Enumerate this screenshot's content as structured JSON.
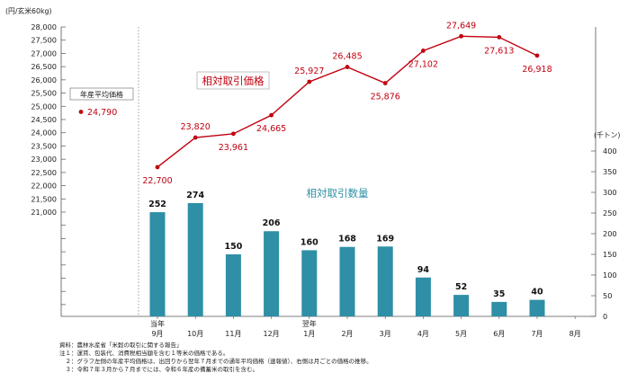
{
  "chart_data": {
    "type": "bar+line",
    "left_axis_unit": "(円/玄米60kg)",
    "right_axis_unit": "(千トン)",
    "left_ticks": [
      21000,
      21500,
      22000,
      22500,
      23000,
      23500,
      24000,
      24500,
      25000,
      25500,
      26000,
      26500,
      27000,
      27500,
      28000
    ],
    "left_tick_labels": [
      "21,000",
      "21,500",
      "22,000",
      "22,500",
      "23,000",
      "23,500",
      "24,000",
      "24,500",
      "25,000",
      "25,500",
      "26,000",
      "26,500",
      "27,000",
      "27,500",
      "28,000"
    ],
    "right_ticks": [
      0,
      50,
      100,
      150,
      200,
      250,
      300,
      350,
      400
    ],
    "categories": [
      "9月",
      "10月",
      "11月",
      "12月",
      "1月",
      "2月",
      "3月",
      "4月",
      "5月",
      "6月",
      "7月",
      "8月"
    ],
    "category_prefix": {
      "0": "当年",
      "4": "翌年"
    },
    "annual_label": "年産平均価格",
    "annual_value": 24790,
    "annual_value_label": "24,790",
    "price_series": {
      "name": "相対取引価格",
      "color": "#c0000f",
      "values": [
        22700,
        23820,
        23961,
        24665,
        25927,
        26485,
        25876,
        27102,
        27649,
        27613,
        26918
      ],
      "labels": [
        "22,700",
        "23,820",
        "23,961",
        "24,665",
        "25,927",
        "26,485",
        "25,876",
        "27,102",
        "27,649",
        "27,613",
        "26,918"
      ]
    },
    "volume_series": {
      "name": "相対取引数量",
      "color": "#2e8fa6",
      "values": [
        252,
        274,
        150,
        206,
        160,
        168,
        169,
        94,
        52,
        35,
        40
      ],
      "labels": [
        "252",
        "274",
        "150",
        "206",
        "160",
        "168",
        "169",
        "94",
        "52",
        "35",
        "40"
      ]
    }
  },
  "notes": [
    "資料：農林水産省「米穀の取引に関する報告」",
    "注１：運賃、包装代、消費税相当額を含む１等米の価格である。",
    "　２：グラフ左側の年産平均価格は、出回りから翌年７月までの通年平均価格（速報値）、右側は月ごとの価格の推移。",
    "　３：令和７年３月から７月までには、令和６年産の備蓄米の取引を含む。"
  ]
}
